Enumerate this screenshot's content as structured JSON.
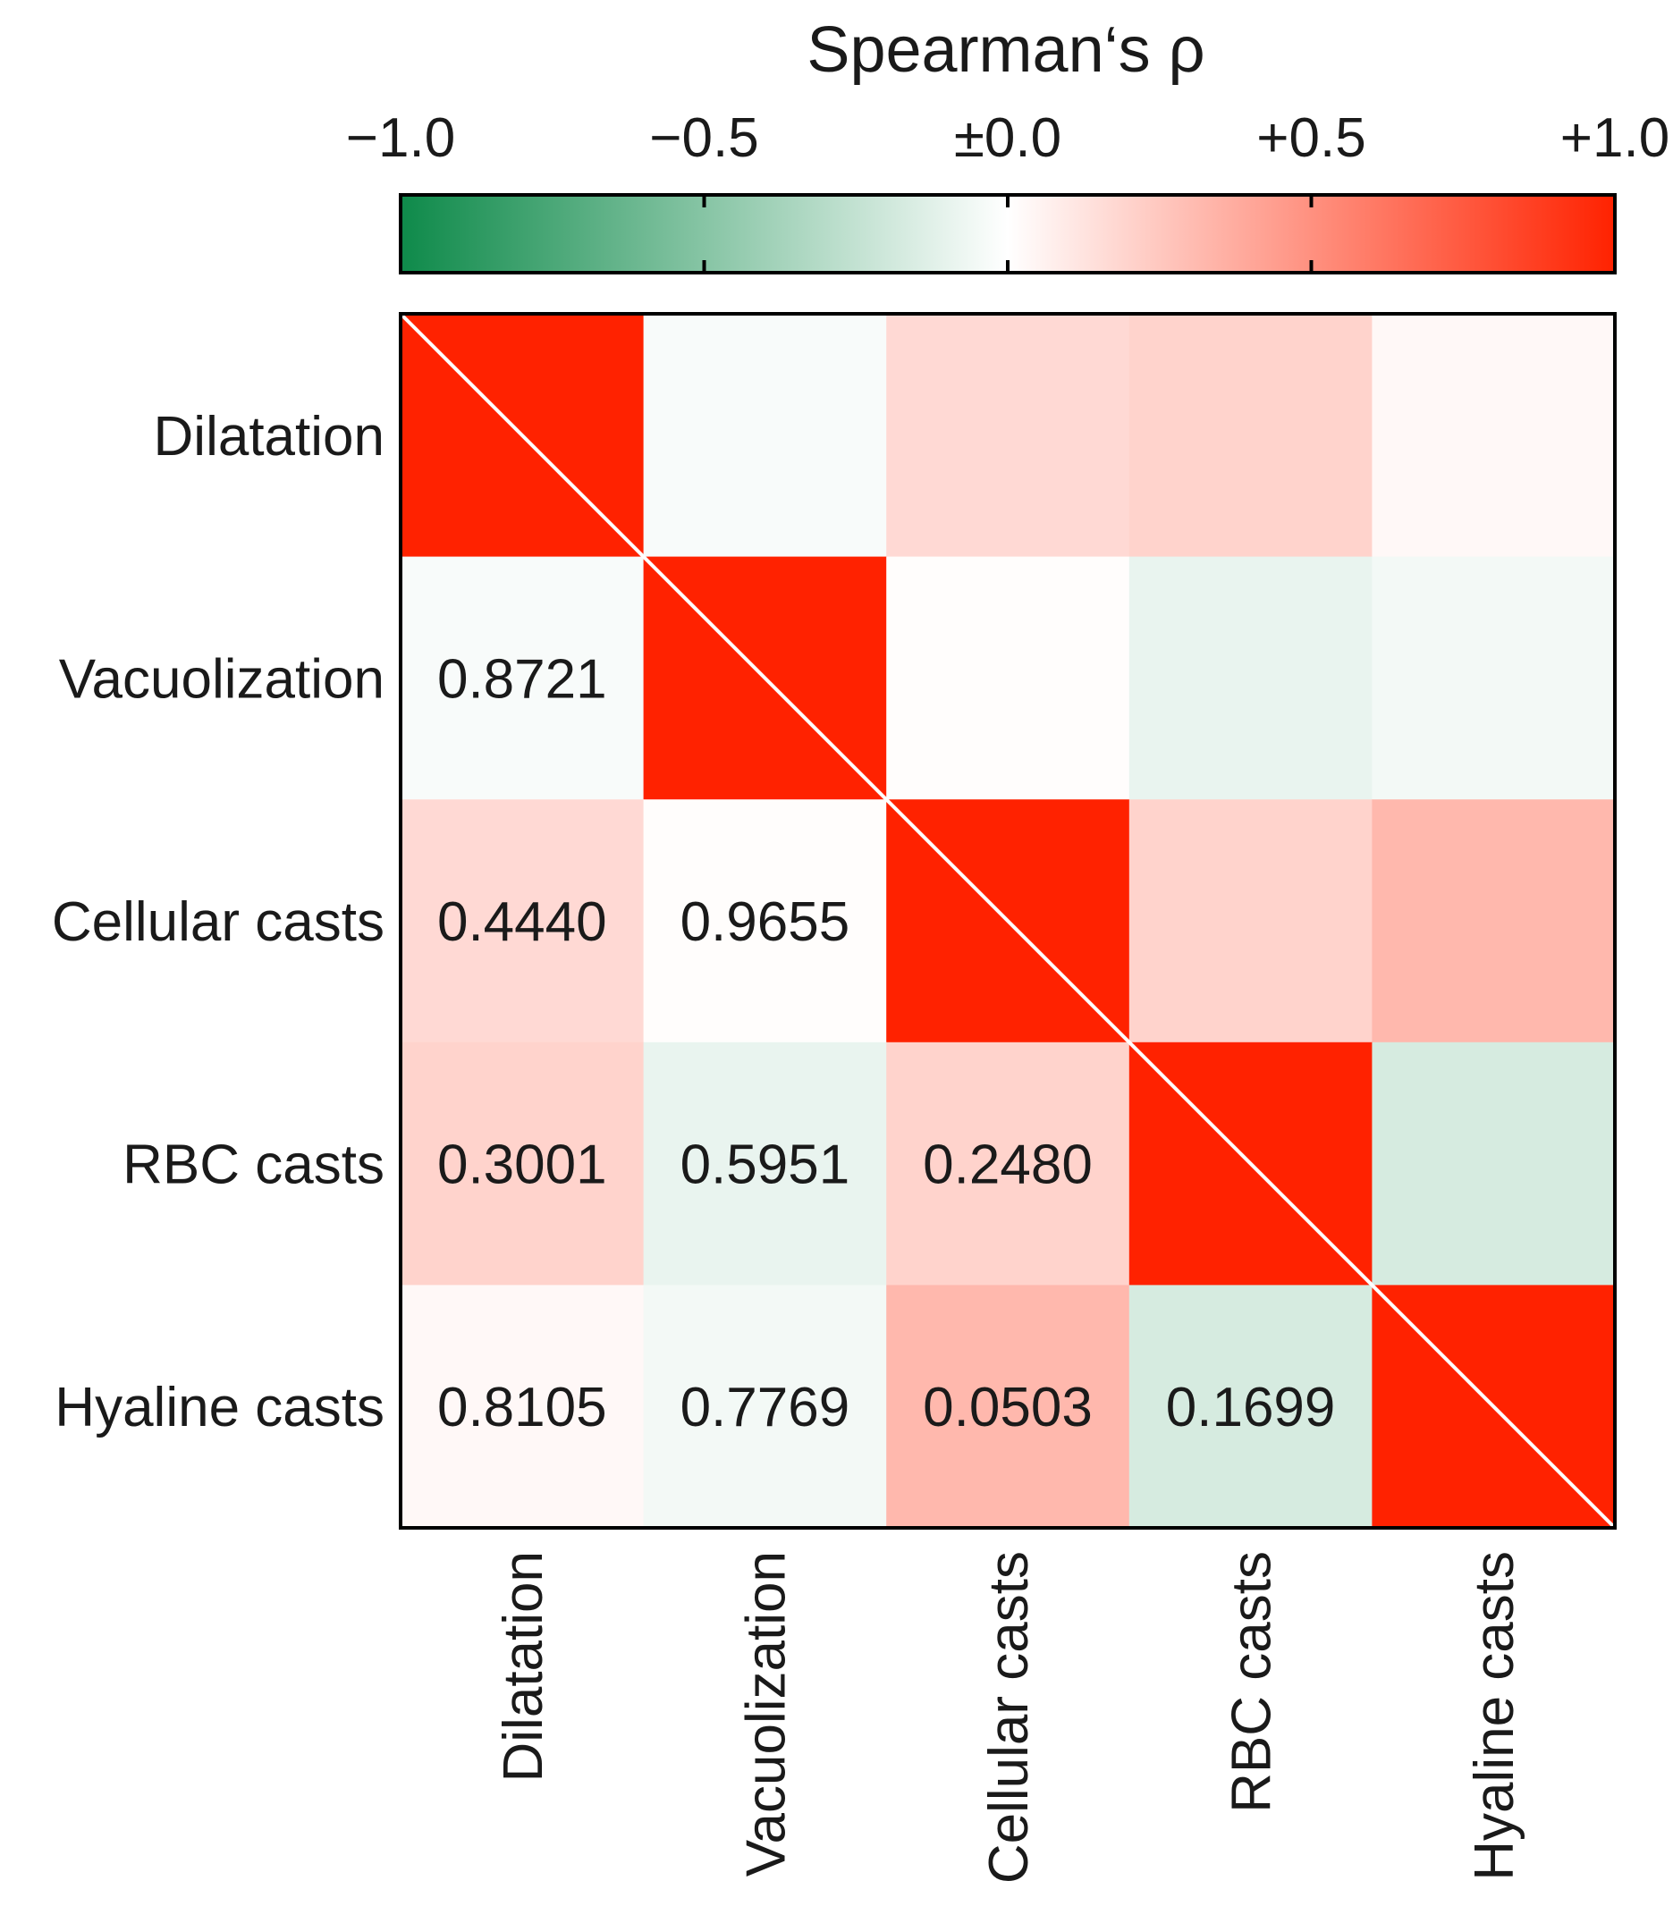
{
  "chart_data": {
    "type": "heatmap",
    "title": "",
    "colorbar": {
      "title": "Spearman‘s ρ",
      "range": [
        -1.0,
        1.0
      ],
      "ticks": [
        -1.0,
        -0.5,
        0.0,
        0.5,
        1.0
      ],
      "tick_labels": [
        "−1.0",
        "−0.5",
        "±0.0",
        "+0.5",
        "+1.0"
      ],
      "colors": {
        "negative": "#0e8a4a",
        "zero": "#ffffff",
        "positive": "#ff2200"
      }
    },
    "row_labels": [
      "Dilatation",
      "Vacuolization",
      "Cellular casts",
      "RBC casts",
      "Hyaline casts"
    ],
    "col_labels": [
      "Dilatation",
      "Vacuolization",
      "Cellular casts",
      "RBC casts",
      "Hyaline casts"
    ],
    "rho": [
      [
        1.0,
        -0.03,
        0.17,
        0.2,
        0.03
      ],
      [
        -0.03,
        1.0,
        0.01,
        -0.09,
        -0.05
      ],
      [
        0.17,
        0.01,
        1.0,
        0.2,
        0.32
      ],
      [
        0.2,
        -0.09,
        0.2,
        1.0,
        -0.17
      ],
      [
        0.03,
        -0.05,
        0.32,
        -0.17,
        1.0
      ]
    ],
    "p_value_labels": {
      "1_0": "0.8721",
      "2_0": "0.4440",
      "2_1": "0.9655",
      "3_0": "0.3001",
      "3_1": "0.5951",
      "3_2": "0.2480",
      "4_0": "0.8105",
      "4_1": "0.7769",
      "4_2": "0.0503",
      "4_3": "0.1699"
    },
    "diagonal": "white diagonal line across matrix",
    "legend_position": "top"
  }
}
